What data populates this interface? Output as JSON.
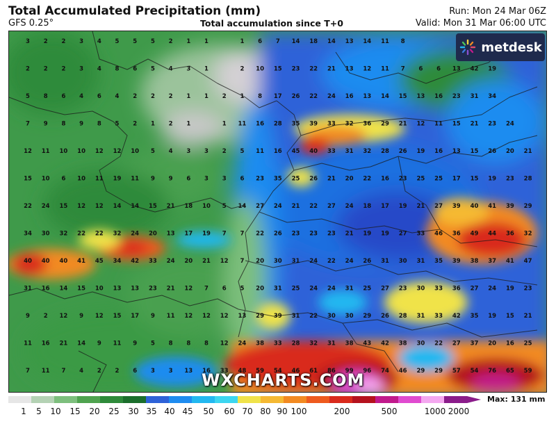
{
  "header": {
    "title": "Total Accumulated Precipitation (mm)",
    "model": "GFS 0.25°",
    "subtitle": "Total accumulation since T+0",
    "run": "Run: Mon 24 Mar 06Z",
    "valid": "Valid: Mon 31 Mar 06:00 UTC"
  },
  "branding": {
    "logo_text": "metdesk",
    "watermark": "WXCHARTS.COM"
  },
  "legend": {
    "max_label": "Max: 131 mm",
    "ticks": [
      "1",
      "5",
      "10",
      "15",
      "20",
      "25",
      "30",
      "35",
      "40",
      "45",
      "50",
      "60",
      "70",
      "80",
      "90",
      "100",
      "200",
      "500",
      "1000",
      "2000"
    ],
    "colors": [
      "#e6e6e6",
      "#b4d2b4",
      "#7dbf7d",
      "#4fa34f",
      "#2e8a3a",
      "#1b6e2c",
      "#2e62d8",
      "#1e8cf0",
      "#22b8f0",
      "#3cd6f0",
      "#f0e34a",
      "#f5b933",
      "#f28a22",
      "#ee5a1e",
      "#d92a1c",
      "#b5121e",
      "#c11a8c",
      "#e04bd0",
      "#f4a8f0",
      "#8a1c8a"
    ]
  },
  "map": {
    "values": [
      [
        "3",
        "2",
        "2",
        "3",
        "4",
        "5",
        "5",
        "5",
        "2",
        "1",
        "1",
        "",
        "1",
        "6",
        "7",
        "14",
        "18",
        "14",
        "13",
        "14",
        "11",
        "8",
        "",
        "",
        ""
      ],
      [
        "2",
        "2",
        "2",
        "3",
        "4",
        "8",
        "6",
        "5",
        "4",
        "3",
        "1",
        "",
        "2",
        "10",
        "15",
        "23",
        "22",
        "21",
        "13",
        "12",
        "11",
        "7",
        "6",
        "6",
        "13",
        "42",
        "19"
      ],
      [
        "5",
        "8",
        "6",
        "4",
        "6",
        "4",
        "2",
        "2",
        "2",
        "1",
        "1",
        "2",
        "1",
        "8",
        "17",
        "26",
        "22",
        "24",
        "16",
        "13",
        "14",
        "15",
        "13",
        "16",
        "23",
        "31",
        "34"
      ],
      [
        "7",
        "9",
        "8",
        "9",
        "8",
        "5",
        "2",
        "1",
        "2",
        "1",
        "",
        "1",
        "11",
        "16",
        "28",
        "35",
        "39",
        "33",
        "32",
        "36",
        "29",
        "21",
        "12",
        "11",
        "15",
        "21",
        "23",
        "24"
      ],
      [
        "12",
        "11",
        "10",
        "10",
        "12",
        "12",
        "10",
        "5",
        "4",
        "3",
        "3",
        "2",
        "5",
        "11",
        "16",
        "45",
        "40",
        "33",
        "31",
        "32",
        "28",
        "26",
        "19",
        "16",
        "13",
        "15",
        "26",
        "20",
        "21"
      ],
      [
        "15",
        "10",
        "6",
        "10",
        "11",
        "19",
        "11",
        "9",
        "9",
        "6",
        "3",
        "3",
        "6",
        "23",
        "35",
        "25",
        "26",
        "21",
        "20",
        "22",
        "16",
        "23",
        "25",
        "25",
        "17",
        "15",
        "19",
        "23",
        "28"
      ],
      [
        "22",
        "24",
        "15",
        "12",
        "12",
        "14",
        "14",
        "15",
        "21",
        "18",
        "10",
        "5",
        "14",
        "27",
        "24",
        "21",
        "22",
        "27",
        "24",
        "18",
        "17",
        "19",
        "21",
        "27",
        "39",
        "40",
        "41",
        "39",
        "29"
      ],
      [
        "34",
        "30",
        "32",
        "22",
        "22",
        "32",
        "24",
        "20",
        "13",
        "17",
        "19",
        "7",
        "7",
        "22",
        "26",
        "23",
        "23",
        "23",
        "21",
        "19",
        "19",
        "27",
        "33",
        "46",
        "36",
        "49",
        "44",
        "36",
        "32"
      ],
      [
        "40",
        "40",
        "40",
        "41",
        "45",
        "34",
        "42",
        "33",
        "24",
        "20",
        "21",
        "12",
        "7",
        "20",
        "30",
        "31",
        "24",
        "22",
        "24",
        "26",
        "31",
        "30",
        "31",
        "35",
        "39",
        "38",
        "37",
        "41",
        "47"
      ],
      [
        "31",
        "16",
        "14",
        "15",
        "10",
        "13",
        "13",
        "23",
        "21",
        "12",
        "7",
        "6",
        "5",
        "20",
        "31",
        "25",
        "24",
        "24",
        "31",
        "25",
        "27",
        "23",
        "30",
        "33",
        "36",
        "27",
        "24",
        "19",
        "23"
      ],
      [
        "9",
        "2",
        "12",
        "9",
        "12",
        "15",
        "17",
        "9",
        "11",
        "12",
        "12",
        "12",
        "13",
        "29",
        "39",
        "31",
        "22",
        "30",
        "30",
        "29",
        "26",
        "28",
        "31",
        "33",
        "42",
        "35",
        "19",
        "15",
        "21"
      ],
      [
        "11",
        "16",
        "21",
        "14",
        "9",
        "11",
        "9",
        "5",
        "8",
        "8",
        "8",
        "12",
        "24",
        "38",
        "33",
        "28",
        "32",
        "31",
        "38",
        "43",
        "42",
        "38",
        "30",
        "22",
        "27",
        "37",
        "20",
        "16",
        "25"
      ],
      [
        "7",
        "11",
        "7",
        "4",
        "2",
        "2",
        "6",
        "3",
        "3",
        "13",
        "16",
        "33",
        "48",
        "59",
        "54",
        "46",
        "61",
        "86",
        "99",
        "96",
        "74",
        "46",
        "29",
        "29",
        "57",
        "54",
        "76",
        "65",
        "59"
      ]
    ]
  }
}
